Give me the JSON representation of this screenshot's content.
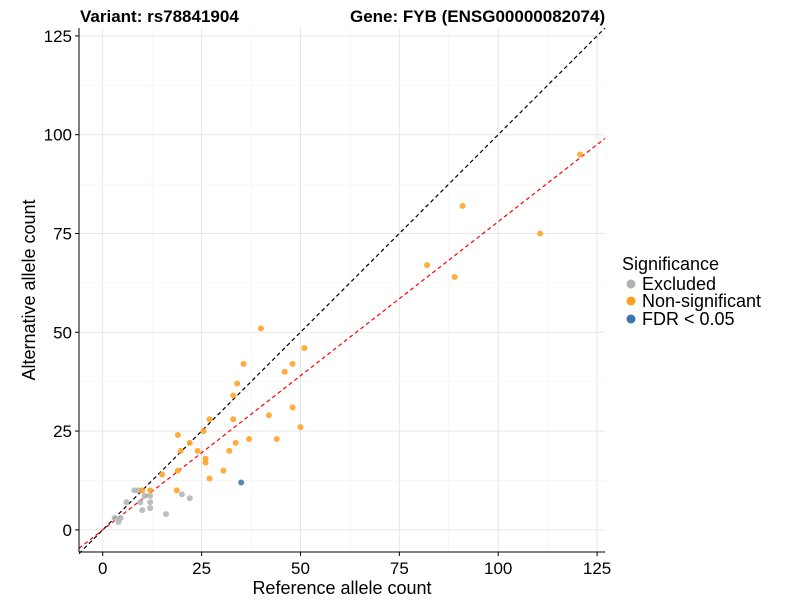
{
  "chart_data": {
    "type": "scatter",
    "title_left": "Variant: rs78841904",
    "title_right": "Gene: FYB (ENSG00000082074)",
    "xlabel": "Reference allele count",
    "ylabel": "Alternative allele count",
    "xlim": [
      -6,
      127
    ],
    "ylim": [
      -5.6,
      127
    ],
    "xticks": [
      0,
      25,
      50,
      75,
      100,
      125
    ],
    "yticks": [
      0,
      25,
      50,
      75,
      100,
      125
    ],
    "grid": true,
    "legend": {
      "title": "Significance",
      "position": "right",
      "entries": [
        {
          "label": "Excluded",
          "color": "#b3b3b3"
        },
        {
          "label": "Non-significant",
          "color": "#ff9f1c"
        },
        {
          "label": "FDR < 0.05",
          "color": "#3a75b0"
        }
      ]
    },
    "reference_lines": [
      {
        "name": "y=x",
        "slope": 1,
        "intercept": 0,
        "color": "#000000"
      },
      {
        "name": "fit",
        "slope": 0.78,
        "intercept": 0,
        "color": "#ff0000"
      }
    ],
    "series": [
      {
        "name": "Excluded",
        "color": "#b3b3b3",
        "points": [
          [
            8,
            10
          ],
          [
            9,
            10
          ],
          [
            10.6,
            8.6
          ],
          [
            12,
            8.6
          ],
          [
            20,
            9
          ],
          [
            22,
            8
          ],
          [
            12,
            7
          ],
          [
            12,
            5.5
          ],
          [
            10,
            5
          ],
          [
            16,
            4
          ],
          [
            6,
            7
          ],
          [
            3,
            3
          ],
          [
            4.5,
            3
          ],
          [
            4,
            2
          ],
          [
            9.5,
            7
          ]
        ]
      },
      {
        "name": "Non-significant",
        "color": "#ff9f1c",
        "points": [
          [
            120.7,
            95
          ],
          [
            91,
            82
          ],
          [
            110.6,
            75
          ],
          [
            82,
            67
          ],
          [
            89,
            64
          ],
          [
            40,
            51
          ],
          [
            51,
            46
          ],
          [
            35.6,
            42
          ],
          [
            48,
            42
          ],
          [
            46,
            40
          ],
          [
            34,
            37
          ],
          [
            33,
            34
          ],
          [
            42,
            29
          ],
          [
            48,
            31
          ],
          [
            27,
            28
          ],
          [
            33,
            28
          ],
          [
            50,
            26
          ],
          [
            25.5,
            25
          ],
          [
            19,
            24
          ],
          [
            37,
            23
          ],
          [
            44,
            23
          ],
          [
            33.6,
            22
          ],
          [
            22,
            22
          ],
          [
            19.7,
            20
          ],
          [
            32,
            20
          ],
          [
            24,
            20
          ],
          [
            26,
            18
          ],
          [
            26,
            17
          ],
          [
            15,
            14
          ],
          [
            19,
            15
          ],
          [
            30.5,
            15
          ],
          [
            27,
            13
          ],
          [
            18.7,
            10
          ],
          [
            12,
            10
          ],
          [
            10,
            10
          ]
        ]
      },
      {
        "name": "FDR < 0.05",
        "color": "#3a75b0",
        "points": [
          [
            35,
            12
          ]
        ]
      }
    ]
  }
}
